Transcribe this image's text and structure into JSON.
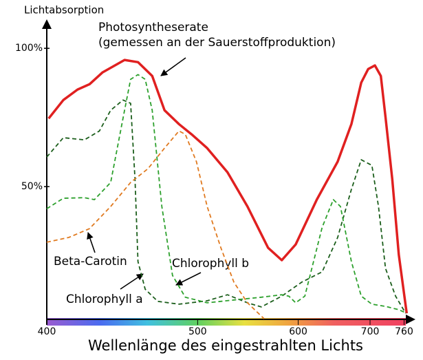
{
  "chart_data": {
    "type": "line",
    "y_axis_title": "Lichtabsorption",
    "x_axis_title": "Wellenlänge des eingestrahlten Lichts",
    "annotation": "(gemessen an der Sauerstoffproduktion)",
    "xscale": "reciprocal",
    "xlim": [
      400,
      770
    ],
    "ylim": [
      0,
      110
    ],
    "xticks": [
      400,
      500,
      600,
      700,
      760
    ],
    "yticks": [
      {
        "value": 50,
        "label": "50%"
      },
      {
        "value": 100,
        "label": "100%"
      }
    ],
    "series": [
      {
        "name": "Photosyntheserate",
        "color": "#e02020",
        "dashed": false,
        "x": [
          401,
          409,
          417,
          424,
          432,
          446,
          455,
          465,
          474,
          485,
          495,
          508,
          526,
          545,
          566,
          581,
          597,
          623,
          651,
          671,
          686,
          697,
          708,
          718,
          726,
          738,
          750,
          765
        ],
        "values": [
          74.6,
          81.3,
          85.1,
          87,
          91.3,
          95.8,
          95,
          90,
          77.6,
          72.6,
          68.9,
          63.9,
          55.2,
          42.8,
          27.9,
          23.4,
          29.1,
          45.3,
          59,
          72.6,
          87.6,
          92.5,
          93.8,
          90,
          75.1,
          52.7,
          25.4,
          4.2
        ]
      },
      {
        "name": "Chlorophyll a",
        "color": "#1b5e1b",
        "dashed": true,
        "x": [
          400,
          409,
          421,
          430,
          437,
          445,
          450,
          453,
          455,
          460,
          469,
          485,
          508,
          526,
          545,
          559,
          581,
          604,
          630,
          651,
          671,
          686,
          703,
          714,
          726,
          744,
          763
        ],
        "values": [
          60.7,
          67.7,
          66.9,
          70.1,
          77.6,
          81.3,
          80.1,
          52.7,
          22.9,
          12.9,
          8.5,
          7.5,
          8.7,
          10.9,
          8,
          6.5,
          10.4,
          15.4,
          19.2,
          31.6,
          49,
          59.7,
          57.7,
          42.8,
          20.4,
          10.4,
          4.2
        ]
      },
      {
        "name": "Chlorophyll b",
        "color": "#2ca02c",
        "dashed": true,
        "x": [
          400,
          409,
          421,
          427,
          437,
          446,
          450,
          455,
          460,
          465,
          472,
          480,
          490,
          508,
          532,
          559,
          581,
          589,
          597,
          608,
          630,
          645,
          655,
          671,
          686,
          703,
          726,
          750,
          765
        ],
        "values": [
          42,
          45.8,
          46,
          45.3,
          51.5,
          77.6,
          88.8,
          90.5,
          88.8,
          77.6,
          42.8,
          17.9,
          10,
          8,
          9,
          10,
          10.9,
          10.4,
          8,
          10.4,
          35.3,
          45.3,
          42.8,
          22.9,
          10.4,
          7.5,
          6.7,
          5.5,
          4.2
        ]
      },
      {
        "name": "Beta-Carotin",
        "color": "#e07a20",
        "dashed": true,
        "x": [
          400,
          412,
          424,
          437,
          450,
          462,
          474,
          485,
          490,
          499,
          508,
          520,
          532,
          545,
          562
        ],
        "values": [
          29.9,
          31.6,
          34.8,
          42.8,
          51.5,
          56.5,
          63.9,
          70.1,
          68.9,
          59,
          42.8,
          27.9,
          15.4,
          8,
          2.2
        ]
      }
    ]
  }
}
